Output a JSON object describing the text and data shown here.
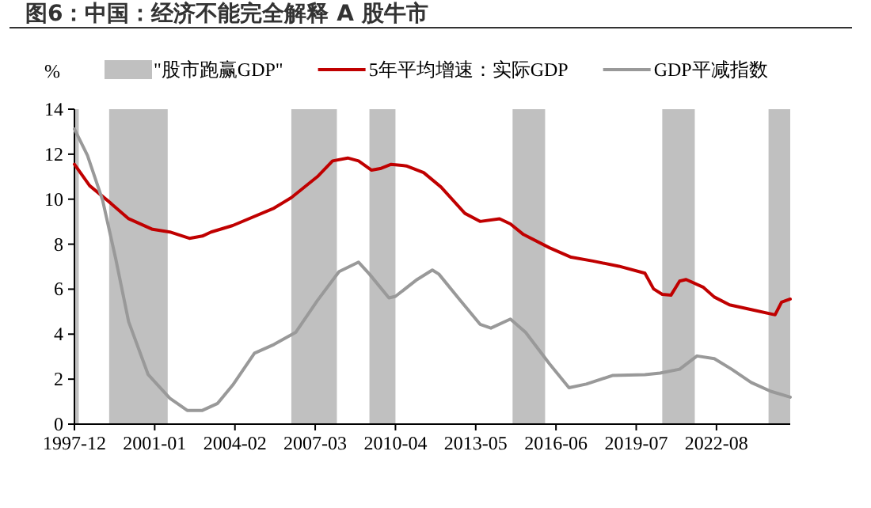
{
  "chart_data": {
    "type": "line",
    "title": "图6：中国：经济不能完全解释 A 股牛市",
    "ylabel": "%",
    "legend": "top",
    "xlim": [
      "1997-12",
      "2025-06"
    ],
    "ylim": [
      0,
      14
    ],
    "yticks": [
      0,
      2,
      4,
      6,
      8,
      10,
      12,
      14
    ],
    "xticks": [
      "1997-12",
      "2001-01",
      "2004-02",
      "2007-03",
      "2010-04",
      "2013-05",
      "2016-06",
      "2019-07",
      "2022-08"
    ],
    "bands": [
      {
        "axis": "x",
        "from": "1997-12",
        "to": "1998-02",
        "label": "\"股市跑赢GDP\"",
        "color": "#c0c0c0"
      },
      {
        "axis": "x",
        "from": "1999-04",
        "to": "2001-07",
        "color": "#c0c0c0"
      },
      {
        "axis": "x",
        "from": "2006-04",
        "to": "2008-01",
        "color": "#c0c0c0"
      },
      {
        "axis": "x",
        "from": "2009-04",
        "to": "2010-04",
        "color": "#c0c0c0"
      },
      {
        "axis": "x",
        "from": "2014-10",
        "to": "2016-01",
        "color": "#c0c0c0"
      },
      {
        "axis": "x",
        "from": "2020-07",
        "to": "2021-10",
        "color": "#c0c0c0"
      },
      {
        "axis": "x",
        "from": "2024-08",
        "to": "2025-06",
        "color": "#c0c0c0"
      }
    ],
    "series": [
      {
        "name": "5年平均增速：实际GDP",
        "color": "#c00000",
        "x": [
          "1997-12",
          "1998-07",
          "1999-05",
          "2000-01",
          "2000-12",
          "2001-08",
          "2002-05",
          "2002-11",
          "2003-03",
          "2004-01",
          "2005-08",
          "2006-04",
          "2007-04",
          "2007-11",
          "2008-06",
          "2008-11",
          "2009-05",
          "2009-09",
          "2010-02",
          "2010-09",
          "2011-05",
          "2012-01",
          "2012-12",
          "2013-07",
          "2014-04",
          "2014-09",
          "2015-03",
          "2016-03",
          "2017-01",
          "2017-11",
          "2018-11",
          "2019-11",
          "2020-03",
          "2020-07",
          "2020-11",
          "2021-03",
          "2021-06",
          "2022-02",
          "2022-07",
          "2023-02",
          "2023-12",
          "2024-11",
          "2025-02",
          "2025-06"
        ],
        "values": [
          11.55,
          10.6,
          9.8,
          9.13,
          8.66,
          8.54,
          8.26,
          8.36,
          8.54,
          8.83,
          9.6,
          10.07,
          11.0,
          11.7,
          11.83,
          11.7,
          11.29,
          11.36,
          11.55,
          11.48,
          11.18,
          10.54,
          9.37,
          9.01,
          9.13,
          8.9,
          8.43,
          7.84,
          7.42,
          7.25,
          7.02,
          6.71,
          6.01,
          5.77,
          5.73,
          6.36,
          6.43,
          6.08,
          5.65,
          5.3,
          5.09,
          4.86,
          5.42,
          5.56
        ]
      },
      {
        "name": "GDP平减指数",
        "color": "#999999",
        "x": [
          "1997-12",
          "1998-06",
          "1999-01",
          "1999-07",
          "2000-01",
          "2000-10",
          "2001-08",
          "2002-04",
          "2002-11",
          "2003-06",
          "2004-01",
          "2004-11",
          "2005-08",
          "2006-06",
          "2007-04",
          "2008-02",
          "2008-11",
          "2009-04",
          "2010-01",
          "2010-04",
          "2011-02",
          "2011-09",
          "2011-12",
          "2012-10",
          "2013-07",
          "2013-12",
          "2014-09",
          "2015-04",
          "2016-03",
          "2016-12",
          "2017-08",
          "2018-08",
          "2019-11",
          "2020-06",
          "2021-03",
          "2021-11",
          "2022-07",
          "2023-03",
          "2023-12",
          "2024-09",
          "2025-06"
        ],
        "values": [
          13.12,
          11.95,
          9.95,
          7.37,
          4.55,
          2.2,
          1.15,
          0.61,
          0.61,
          0.92,
          1.74,
          3.15,
          3.54,
          4.08,
          5.49,
          6.78,
          7.2,
          6.67,
          5.61,
          5.68,
          6.43,
          6.85,
          6.67,
          5.49,
          4.44,
          4.27,
          4.67,
          4.08,
          2.68,
          1.62,
          1.78,
          2.16,
          2.2,
          2.27,
          2.44,
          3.03,
          2.91,
          2.44,
          1.85,
          1.46,
          1.2
        ]
      }
    ]
  }
}
